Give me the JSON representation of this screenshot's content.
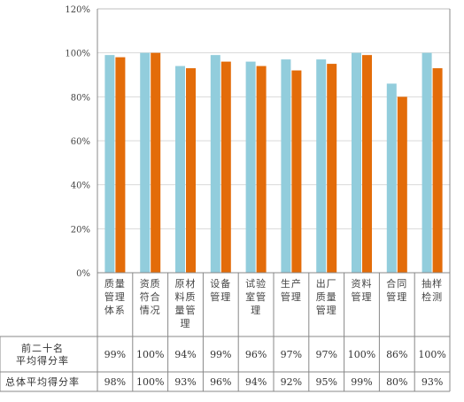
{
  "chart_data": {
    "type": "bar",
    "categories": [
      [
        "质量",
        "管理",
        "体系"
      ],
      [
        "资质",
        "符合",
        "情况"
      ],
      [
        "原材",
        "料质",
        "量管",
        "理"
      ],
      [
        "设备",
        "管理"
      ],
      [
        "试验",
        "室管",
        "理"
      ],
      [
        "生产",
        "管理"
      ],
      [
        "出厂",
        "质量",
        "管理"
      ],
      [
        "资料",
        "管理"
      ],
      [
        "合同",
        "管理"
      ],
      [
        "抽样",
        "检测"
      ]
    ],
    "series": [
      {
        "name": "前二十名平均得分率",
        "color": "#92CDDC",
        "values": [
          99,
          100,
          94,
          99,
          96,
          97,
          97,
          100,
          86,
          100
        ]
      },
      {
        "name": "总体平均得分率",
        "color": "#E36C09",
        "values": [
          98,
          100,
          93,
          96,
          94,
          92,
          95,
          99,
          80,
          93
        ]
      }
    ],
    "row_labels": [
      [
        "前二十名",
        "平均得分率"
      ],
      [
        "总体平均得分率"
      ]
    ],
    "table_values": [
      [
        "99%",
        "100%",
        "94%",
        "99%",
        "96%",
        "97%",
        "97%",
        "100%",
        "86%",
        "100%"
      ],
      [
        "98%",
        "100%",
        "93%",
        "96%",
        "94%",
        "92%",
        "95%",
        "99%",
        "80%",
        "93%"
      ]
    ],
    "yticks": [
      "0%",
      "20%",
      "40%",
      "60%",
      "80%",
      "100%",
      "120%"
    ],
    "ylim": [
      0,
      120
    ],
    "grid": "y-major"
  }
}
